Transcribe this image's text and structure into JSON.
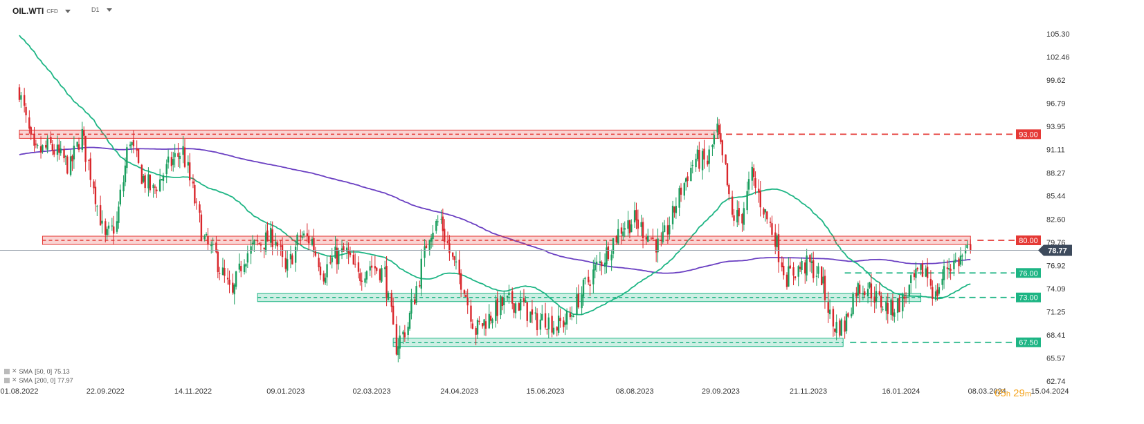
{
  "header": {
    "symbol": "OIL.WTI",
    "instrument_type": "CFD",
    "timeframe": "D1"
  },
  "indicators": [
    {
      "label": "SMA",
      "params": "[50, 0]",
      "value": "75.13",
      "color": "#1db584"
    },
    {
      "label": "SMA",
      "params": "[200, 0]",
      "value": "77.97",
      "color": "#6a3fc2"
    }
  ],
  "timer": {
    "hours": "05",
    "h": "h",
    "minutes": "29",
    "m": "m"
  },
  "colors": {
    "bull": "#1a9e5e",
    "bear": "#d9262b",
    "resistance": "#e53935",
    "support": "#1db584",
    "sma50": "#1db584",
    "sma200": "#6a3fc2",
    "price": "#3d4a5c"
  },
  "chart_data": {
    "type": "candlestick",
    "y_tick_labels": [
      "105.30",
      "102.46",
      "99.62",
      "96.79",
      "93.95",
      "91.11",
      "88.27",
      "85.44",
      "82.60",
      "79.76",
      "76.92",
      "74.09",
      "71.25",
      "68.41",
      "65.57",
      "62.74"
    ],
    "ylim": [
      62.74,
      105.3
    ],
    "x_tick_labels": [
      "01.08.2022",
      "22.09.2022",
      "14.11.2022",
      "09.01.2023",
      "02.03.2023",
      "24.04.2023",
      "15.06.2023",
      "08.08.2023",
      "29.09.2023",
      "21.11.2023",
      "16.01.2024",
      "08.03.2024",
      "15.04.2024"
    ],
    "xlim": [
      "2022-08-01",
      "2024-04-15"
    ],
    "last_price": "78.77",
    "levels": [
      {
        "value": 93.0,
        "label": "93.00",
        "type": "resistance",
        "zone_start": "2022-08-01",
        "zone_end": "2023-09-28"
      },
      {
        "value": 80.0,
        "label": "80.00",
        "type": "resistance",
        "zone_start": "2022-08-15",
        "zone_end": "2024-02-27"
      },
      {
        "value": 76.0,
        "label": "76.00",
        "type": "support",
        "zone_start": "2023-12-13",
        "zone_end": null
      },
      {
        "value": 73.0,
        "label": "73.00",
        "type": "support",
        "zone_start": "2022-12-23",
        "zone_end": "2024-01-28"
      },
      {
        "value": 67.5,
        "label": "67.50",
        "type": "support",
        "zone_start": "2023-03-15",
        "zone_end": "2023-12-12"
      }
    ],
    "price_path": [
      [
        "2022-08-01",
        98.5
      ],
      [
        "2022-08-10",
        90.5
      ],
      [
        "2022-08-20",
        91.5
      ],
      [
        "2022-09-01",
        89
      ],
      [
        "2022-09-08",
        93
      ],
      [
        "2022-09-15",
        87
      ],
      [
        "2022-09-22",
        80
      ],
      [
        "2022-09-29",
        82
      ],
      [
        "2022-10-07",
        92.5
      ],
      [
        "2022-10-14",
        88
      ],
      [
        "2022-10-21",
        86
      ],
      [
        "2022-11-01",
        89.5
      ],
      [
        "2022-11-08",
        91
      ],
      [
        "2022-11-14",
        86
      ],
      [
        "2022-11-21",
        80
      ],
      [
        "2022-11-28",
        78
      ],
      [
        "2022-12-08",
        73
      ],
      [
        "2022-12-15",
        78
      ],
      [
        "2022-12-23",
        79.5
      ],
      [
        "2023-01-03",
        80.5
      ],
      [
        "2023-01-09",
        76
      ],
      [
        "2023-01-18",
        80.5
      ],
      [
        "2023-01-25",
        80
      ],
      [
        "2023-02-01",
        76
      ],
      [
        "2023-02-08",
        78
      ],
      [
        "2023-02-15",
        78.5
      ],
      [
        "2023-02-22",
        75.5
      ],
      [
        "2023-03-01",
        77
      ],
      [
        "2023-03-10",
        76
      ],
      [
        "2023-03-17",
        67
      ],
      [
        "2023-03-24",
        69.5
      ],
      [
        "2023-03-31",
        75.5
      ],
      [
        "2023-04-06",
        81
      ],
      [
        "2023-04-13",
        82.5
      ],
      [
        "2023-04-20",
        77.5
      ],
      [
        "2023-04-27",
        74.5
      ],
      [
        "2023-05-04",
        69
      ],
      [
        "2023-05-12",
        70.5
      ],
      [
        "2023-05-19",
        72
      ],
      [
        "2023-05-26",
        72.5
      ],
      [
        "2023-06-02",
        72
      ],
      [
        "2023-06-09",
        70
      ],
      [
        "2023-06-15",
        70.5
      ],
      [
        "2023-06-22",
        69.5
      ],
      [
        "2023-06-30",
        70.5
      ],
      [
        "2023-07-07",
        73.5
      ],
      [
        "2023-07-14",
        76
      ],
      [
        "2023-07-21",
        78
      ],
      [
        "2023-07-31",
        81.5
      ],
      [
        "2023-08-08",
        82.5
      ],
      [
        "2023-08-15",
        81
      ],
      [
        "2023-08-24",
        79
      ],
      [
        "2023-08-31",
        83
      ],
      [
        "2023-09-07",
        87
      ],
      [
        "2023-09-14",
        90
      ],
      [
        "2023-09-21",
        89.5
      ],
      [
        "2023-09-27",
        93.5
      ],
      [
        "2023-10-02",
        88.5
      ],
      [
        "2023-10-06",
        82.8
      ],
      [
        "2023-10-12",
        83
      ],
      [
        "2023-10-18",
        88
      ],
      [
        "2023-10-25",
        84
      ],
      [
        "2023-11-01",
        80.5
      ],
      [
        "2023-11-08",
        75.5
      ],
      [
        "2023-11-15",
        76.5
      ],
      [
        "2023-11-22",
        77
      ],
      [
        "2023-11-29",
        75.5
      ],
      [
        "2023-12-06",
        69.5
      ],
      [
        "2023-12-13",
        69.5
      ],
      [
        "2023-12-20",
        74
      ],
      [
        "2023-12-27",
        74.5
      ],
      [
        "2024-01-03",
        72.5
      ],
      [
        "2024-01-10",
        71.5
      ],
      [
        "2024-01-17",
        72.5
      ],
      [
        "2024-01-24",
        75
      ],
      [
        "2024-01-31",
        76.5
      ],
      [
        "2024-02-06",
        73
      ],
      [
        "2024-02-13",
        76.8
      ],
      [
        "2024-02-20",
        77.5
      ],
      [
        "2024-02-27",
        78.77
      ]
    ]
  }
}
